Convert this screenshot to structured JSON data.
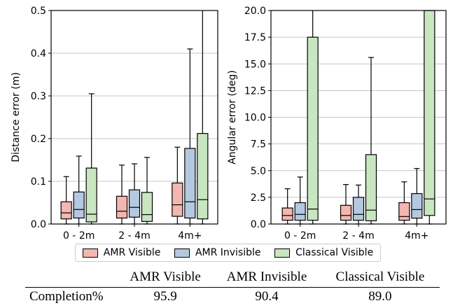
{
  "colors": {
    "amr_visible": "#f4b6b0",
    "amr_invisible": "#b4c8e0",
    "classical_visible": "#c8e6c0",
    "grid": "#b0b0b0",
    "ink": "#000000"
  },
  "chart_data": [
    {
      "type": "box",
      "ylabel": "Distance error (m)",
      "ylim": [
        0,
        0.5
      ],
      "yticks": [
        0.0,
        0.1,
        0.2,
        0.3,
        0.4,
        0.5
      ],
      "ytick_labels": [
        "0.0",
        "0.1",
        "0.2",
        "0.3",
        "0.4",
        "0.5"
      ],
      "categories": [
        "0 - 2m",
        "2 - 4m",
        "4m+"
      ],
      "grid": "horizontal",
      "series": [
        {
          "name": "AMR Visible",
          "color_key": "amr_visible",
          "boxes": [
            {
              "whislo": 0.0,
              "q1": 0.012,
              "med": 0.026,
              "q3": 0.052,
              "whishi": 0.111
            },
            {
              "whislo": 0.0,
              "q1": 0.014,
              "med": 0.03,
              "q3": 0.065,
              "whishi": 0.138
            },
            {
              "whislo": 0.0,
              "q1": 0.018,
              "med": 0.045,
              "q3": 0.096,
              "whishi": 0.18
            }
          ]
        },
        {
          "name": "AMR Invisible",
          "color_key": "amr_invisible",
          "boxes": [
            {
              "whislo": 0.0,
              "q1": 0.014,
              "med": 0.034,
              "q3": 0.075,
              "whishi": 0.159
            },
            {
              "whislo": 0.0,
              "q1": 0.016,
              "med": 0.039,
              "q3": 0.08,
              "whishi": 0.141
            },
            {
              "whislo": 0.0,
              "q1": 0.014,
              "med": 0.052,
              "q3": 0.177,
              "whishi": 0.41
            }
          ]
        },
        {
          "name": "Classical Visible",
          "color_key": "classical_visible",
          "boxes": [
            {
              "whislo": 0.0,
              "q1": 0.005,
              "med": 0.023,
              "q3": 0.131,
              "whishi": 0.305
            },
            {
              "whislo": 0.0,
              "q1": 0.006,
              "med": 0.022,
              "q3": 0.074,
              "whishi": 0.156
            },
            {
              "whislo": 0.0,
              "q1": 0.012,
              "med": 0.057,
              "q3": 0.212,
              "whishi": 0.5
            }
          ]
        }
      ]
    },
    {
      "type": "box",
      "ylabel": "Angular error (deg)",
      "ylim": [
        0,
        20
      ],
      "yticks": [
        0.0,
        2.5,
        5.0,
        7.5,
        10.0,
        12.5,
        15.0,
        17.5,
        20.0
      ],
      "ytick_labels": [
        "0.0",
        "2.5",
        "5.0",
        "7.5",
        "10.0",
        "12.5",
        "15.0",
        "17.5",
        "20.0"
      ],
      "categories": [
        "0 - 2m",
        "2 - 4m",
        "4m+"
      ],
      "grid": "horizontal",
      "series": [
        {
          "name": "AMR Visible",
          "color_key": "amr_visible",
          "boxes": [
            {
              "whislo": 0.0,
              "q1": 0.35,
              "med": 0.8,
              "q3": 1.5,
              "whishi": 3.3
            },
            {
              "whislo": 0.0,
              "q1": 0.35,
              "med": 0.8,
              "q3": 1.75,
              "whishi": 3.7
            },
            {
              "whislo": 0.0,
              "q1": 0.35,
              "med": 0.7,
              "q3": 2.0,
              "whishi": 3.95
            }
          ]
        },
        {
          "name": "AMR Invisible",
          "color_key": "amr_invisible",
          "boxes": [
            {
              "whislo": 0.0,
              "q1": 0.35,
              "med": 0.9,
              "q3": 2.0,
              "whishi": 4.4
            },
            {
              "whislo": 0.0,
              "q1": 0.35,
              "med": 0.9,
              "q3": 2.5,
              "whishi": 3.65
            },
            {
              "whislo": 0.0,
              "q1": 0.55,
              "med": 1.35,
              "q3": 2.85,
              "whishi": 5.2
            }
          ]
        },
        {
          "name": "Classical Visible",
          "color_key": "classical_visible",
          "boxes": [
            {
              "whislo": 0.0,
              "q1": 0.35,
              "med": 1.4,
              "q3": 17.5,
              "whishi": 20.0
            },
            {
              "whislo": 0.0,
              "q1": 0.3,
              "med": 1.3,
              "q3": 6.5,
              "whishi": 15.6
            },
            {
              "whislo": 0.0,
              "q1": 0.8,
              "med": 2.35,
              "q3": 20.0,
              "whishi": 20.0
            }
          ]
        }
      ]
    }
  ],
  "legend": {
    "items": [
      {
        "label": "AMR Visible",
        "color_key": "amr_visible"
      },
      {
        "label": "AMR Invisible",
        "color_key": "amr_invisible"
      },
      {
        "label": "Classical Visible",
        "color_key": "classical_visible"
      }
    ]
  },
  "table": {
    "headers": [
      "",
      "AMR Visible",
      "AMR Invisible",
      "Classical Visible"
    ],
    "rows": [
      {
        "label": "Completion%",
        "values": [
          "95.9",
          "90.4",
          "89.0"
        ]
      }
    ]
  }
}
